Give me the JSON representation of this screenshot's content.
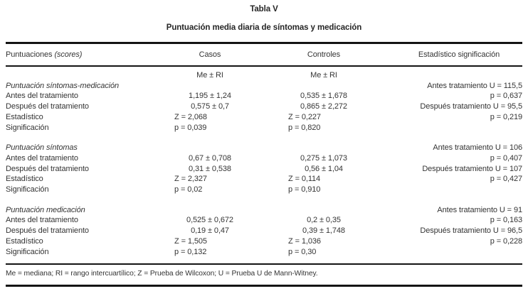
{
  "page": {
    "title": "Tabla V",
    "subtitle": "Puntuación media diaria de síntomas y medicación"
  },
  "header": {
    "col1": "Puntuaciones",
    "col1_italic": "(scores)",
    "casos": "Casos",
    "controles": "Controles",
    "estadistico": "Estadístico significación",
    "subheader": "Me ± RI"
  },
  "sections": [
    {
      "name": "Puntuación síntomas-medicación",
      "rows": [
        {
          "label": "Antes del tratamiento",
          "casos": "1,195 ± 1,24",
          "controles": "0,535 ± 1,678"
        },
        {
          "label": "Después del tratamiento",
          "casos": "0,575 ± 0,7",
          "controles": "0,865 ± 2,272"
        },
        {
          "label": "Estadístico",
          "casos": "Z = 2,068",
          "controles": "Z = 0,227"
        },
        {
          "label": "Significación",
          "casos": "p = 0,039",
          "controles": "p = 0,820"
        }
      ],
      "stats": [
        "Antes tratamiento U = 115,5",
        "p = 0,637",
        "Después tratamiento U = 95,5",
        "p = 0,219"
      ]
    },
    {
      "name": "Puntuación síntomas",
      "rows": [
        {
          "label": "Antes del tratamiento",
          "casos": "0,67 ± 0,708",
          "controles": "0,275 ± 1,073"
        },
        {
          "label": "Después del tratamiento",
          "casos": "0,31 ± 0,538",
          "controles": "0,56 ± 1,04"
        },
        {
          "label": "Estadístico",
          "casos": "Z = 2,327",
          "controles": "Z = 0,114"
        },
        {
          "label": "Significación",
          "casos": "p = 0,02",
          "controles": "p = 0,910"
        }
      ],
      "stats": [
        "Antes tratamiento U = 106",
        "p = 0,407",
        "Después tratamiento U = 107",
        "p = 0,427"
      ]
    },
    {
      "name": "Puntuación medicación",
      "rows": [
        {
          "label": "Antes del tratamiento",
          "casos": "0,525 ± 0,672",
          "controles": "0,2 ± 0,35"
        },
        {
          "label": "Después del tratamiento",
          "casos": "0,19 ± 0,47",
          "controles": "0,39 ± 1,748"
        },
        {
          "label": "Estadístico",
          "casos": "Z = 1,505",
          "controles": "Z = 1,036"
        },
        {
          "label": "Significación",
          "casos": "p = 0,132",
          "controles": "p = 0,30"
        }
      ],
      "stats": [
        "Antes tratamiento U = 91",
        "p = 0,163",
        "Después tratamiento U = 96,5",
        "p = 0,228"
      ]
    }
  ],
  "footnote": "Me = mediana; RI = rango intercuartílico; Z = Prueba de Wilcoxon; U = Prueba U de Mann-Witney."
}
